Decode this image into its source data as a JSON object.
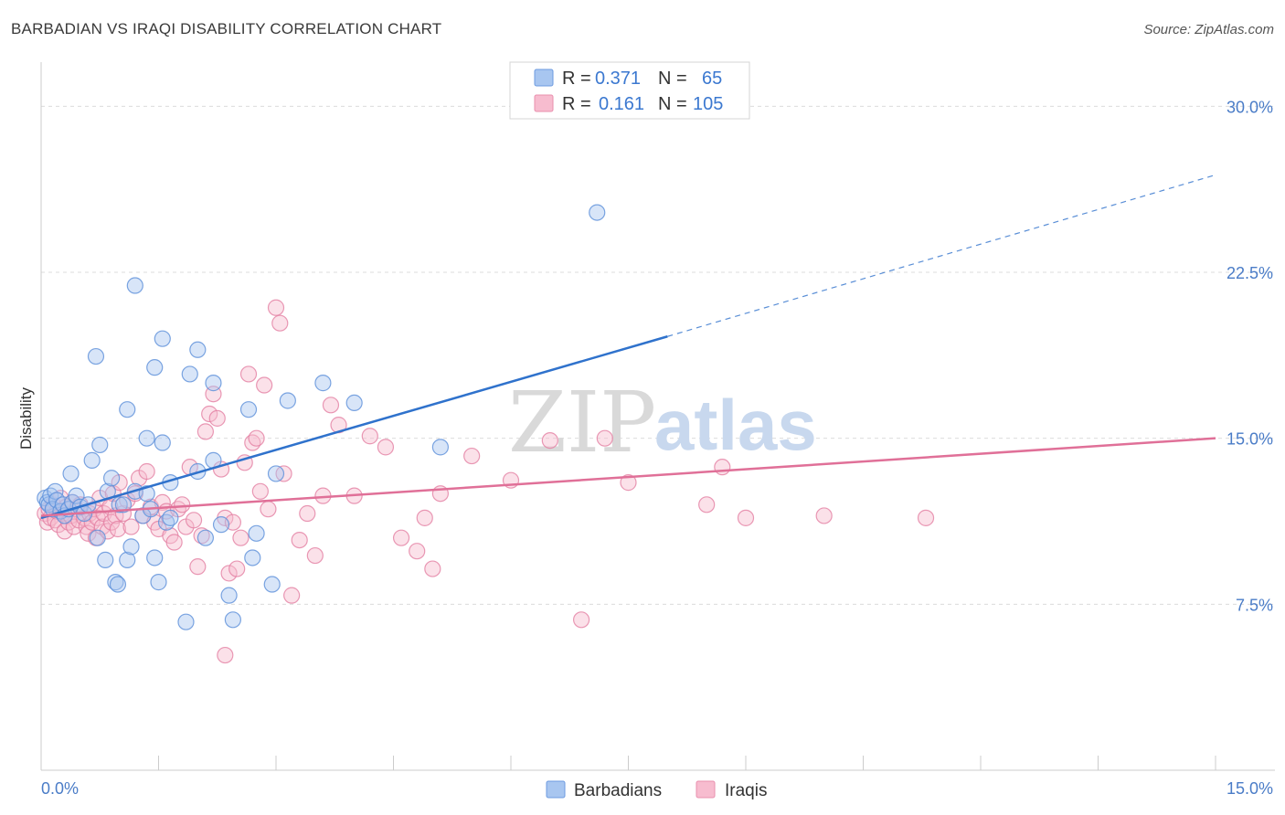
{
  "title": "BARBADIAN VS IRAQI DISABILITY CORRELATION CHART",
  "source": "Source: ZipAtlas.com",
  "watermark": {
    "zip": "ZIP",
    "atlas": "atlas"
  },
  "legend_top": [
    {
      "r_label": "R =",
      "r_value": "0.371",
      "n_label": "N =",
      "n_value": "65",
      "color": "#a8c6f0",
      "stroke": "#6d9be0"
    },
    {
      "r_label": "R =",
      "r_value": "0.161",
      "n_label": "N =",
      "n_value": "105",
      "color": "#f7bccf",
      "stroke": "#e98fae"
    }
  ],
  "chart_data": {
    "type": "scatter",
    "xlabel": "",
    "ylabel": "Disability",
    "xlim": [
      0,
      15
    ],
    "ylim": [
      0,
      31.5
    ],
    "x_tick_labels": [
      "0.0%",
      "15.0%"
    ],
    "y_ticks": [
      7.5,
      15.0,
      22.5,
      30.0
    ],
    "y_tick_labels": [
      "7.5%",
      "15.0%",
      "22.5%",
      "30.0%"
    ],
    "grid": true,
    "legend_position": "bottom-center",
    "series": [
      {
        "name": "Barbadians",
        "color": "#a8c6f0",
        "stroke": "#5b8fd9",
        "trend": {
          "x0": 0,
          "y0": 11.4,
          "x1": 8.0,
          "y1": 19.6,
          "x_dash_end": 15.0,
          "y_dash_end": 26.9,
          "color": "#2f72cc"
        },
        "points": [
          [
            0.05,
            12.3
          ],
          [
            0.08,
            12.1
          ],
          [
            0.1,
            12.0
          ],
          [
            0.12,
            12.4
          ],
          [
            0.15,
            11.8
          ],
          [
            0.18,
            12.6
          ],
          [
            0.2,
            12.2
          ],
          [
            0.25,
            11.7
          ],
          [
            0.28,
            12.0
          ],
          [
            0.3,
            11.5
          ],
          [
            0.35,
            11.8
          ],
          [
            0.4,
            12.1
          ],
          [
            0.45,
            12.4
          ],
          [
            0.5,
            11.9
          ],
          [
            0.55,
            11.6
          ],
          [
            0.6,
            12.0
          ],
          [
            0.38,
            13.4
          ],
          [
            0.65,
            14.0
          ],
          [
            0.75,
            14.7
          ],
          [
            0.85,
            12.6
          ],
          [
            0.9,
            13.2
          ],
          [
            1.0,
            12.0
          ],
          [
            1.05,
            12.0
          ],
          [
            0.72,
            10.5
          ],
          [
            0.82,
            9.5
          ],
          [
            0.95,
            8.5
          ],
          [
            0.98,
            8.4
          ],
          [
            1.1,
            9.5
          ],
          [
            1.15,
            10.1
          ],
          [
            1.3,
            11.5
          ],
          [
            1.2,
            12.6
          ],
          [
            1.35,
            12.5
          ],
          [
            1.4,
            11.8
          ],
          [
            1.45,
            9.6
          ],
          [
            1.5,
            8.5
          ],
          [
            1.55,
            14.8
          ],
          [
            1.6,
            11.2
          ],
          [
            1.65,
            11.4
          ],
          [
            1.35,
            15.0
          ],
          [
            1.1,
            16.3
          ],
          [
            1.45,
            18.2
          ],
          [
            1.55,
            19.5
          ],
          [
            0.7,
            18.7
          ],
          [
            1.2,
            21.9
          ],
          [
            1.9,
            17.9
          ],
          [
            2.0,
            19.0
          ],
          [
            2.2,
            17.5
          ],
          [
            2.1,
            10.5
          ],
          [
            2.3,
            11.1
          ],
          [
            2.2,
            14.0
          ],
          [
            2.4,
            7.9
          ],
          [
            2.45,
            6.8
          ],
          [
            1.85,
            6.7
          ],
          [
            2.65,
            16.3
          ],
          [
            2.7,
            9.6
          ],
          [
            2.75,
            10.7
          ],
          [
            2.95,
            8.4
          ],
          [
            3.0,
            13.4
          ],
          [
            3.15,
            16.7
          ],
          [
            3.6,
            17.5
          ],
          [
            4.0,
            16.6
          ],
          [
            5.1,
            14.6
          ],
          [
            7.1,
            25.2
          ],
          [
            1.65,
            13.0
          ],
          [
            2.0,
            13.5
          ]
        ]
      },
      {
        "name": "Iraqis",
        "color": "#f7bccf",
        "stroke": "#e37fa2",
        "trend": {
          "x0": 0,
          "y0": 11.5,
          "x1": 15.0,
          "y1": 15.0,
          "color": "#e07098"
        },
        "points": [
          [
            0.05,
            11.6
          ],
          [
            0.08,
            11.2
          ],
          [
            0.1,
            11.8
          ],
          [
            0.12,
            11.4
          ],
          [
            0.15,
            12.0
          ],
          [
            0.18,
            11.3
          ],
          [
            0.2,
            11.7
          ],
          [
            0.22,
            11.1
          ],
          [
            0.25,
            12.3
          ],
          [
            0.28,
            11.6
          ],
          [
            0.3,
            10.8
          ],
          [
            0.32,
            11.9
          ],
          [
            0.35,
            11.2
          ],
          [
            0.38,
            11.5
          ],
          [
            0.4,
            12.1
          ],
          [
            0.42,
            11.0
          ],
          [
            0.45,
            11.8
          ],
          [
            0.48,
            11.3
          ],
          [
            0.5,
            12.0
          ],
          [
            0.55,
            11.4
          ],
          [
            0.58,
            11.0
          ],
          [
            0.6,
            10.7
          ],
          [
            0.62,
            11.6
          ],
          [
            0.65,
            11.2
          ],
          [
            0.68,
            11.8
          ],
          [
            0.7,
            10.5
          ],
          [
            0.72,
            11.4
          ],
          [
            0.75,
            12.3
          ],
          [
            0.78,
            11.0
          ],
          [
            0.8,
            11.6
          ],
          [
            0.85,
            10.8
          ],
          [
            0.88,
            11.9
          ],
          [
            0.9,
            11.2
          ],
          [
            0.92,
            12.5
          ],
          [
            0.95,
            11.5
          ],
          [
            0.98,
            10.9
          ],
          [
            1.0,
            13.0
          ],
          [
            1.05,
            11.6
          ],
          [
            1.1,
            12.2
          ],
          [
            1.15,
            11.0
          ],
          [
            1.2,
            12.5
          ],
          [
            1.25,
            13.2
          ],
          [
            1.3,
            11.5
          ],
          [
            1.35,
            13.5
          ],
          [
            1.4,
            11.9
          ],
          [
            1.45,
            11.2
          ],
          [
            1.5,
            10.9
          ],
          [
            1.55,
            12.1
          ],
          [
            1.6,
            11.7
          ],
          [
            1.65,
            10.6
          ],
          [
            1.7,
            10.3
          ],
          [
            1.75,
            11.8
          ],
          [
            1.8,
            12.0
          ],
          [
            1.85,
            11.0
          ],
          [
            1.9,
            13.7
          ],
          [
            1.95,
            11.3
          ],
          [
            2.0,
            9.2
          ],
          [
            2.05,
            10.6
          ],
          [
            2.1,
            15.3
          ],
          [
            2.15,
            16.1
          ],
          [
            2.2,
            17.0
          ],
          [
            2.25,
            15.9
          ],
          [
            2.3,
            13.6
          ],
          [
            2.35,
            11.4
          ],
          [
            2.4,
            8.9
          ],
          [
            2.45,
            11.2
          ],
          [
            2.5,
            9.1
          ],
          [
            2.55,
            10.5
          ],
          [
            2.6,
            13.9
          ],
          [
            2.65,
            17.9
          ],
          [
            2.7,
            14.8
          ],
          [
            2.75,
            15.0
          ],
          [
            2.8,
            12.6
          ],
          [
            2.85,
            17.4
          ],
          [
            2.9,
            11.8
          ],
          [
            3.0,
            20.9
          ],
          [
            3.05,
            20.2
          ],
          [
            3.1,
            13.4
          ],
          [
            3.2,
            7.9
          ],
          [
            3.3,
            10.4
          ],
          [
            3.4,
            11.6
          ],
          [
            3.5,
            9.7
          ],
          [
            3.6,
            12.4
          ],
          [
            3.7,
            16.5
          ],
          [
            3.8,
            15.6
          ],
          [
            4.0,
            12.4
          ],
          [
            4.2,
            15.1
          ],
          [
            4.4,
            14.6
          ],
          [
            4.6,
            10.5
          ],
          [
            4.8,
            9.9
          ],
          [
            4.9,
            11.4
          ],
          [
            5.0,
            9.1
          ],
          [
            5.1,
            12.5
          ],
          [
            5.5,
            14.2
          ],
          [
            6.0,
            13.1
          ],
          [
            6.5,
            14.9
          ],
          [
            6.9,
            6.8
          ],
          [
            7.2,
            15.0
          ],
          [
            7.5,
            13.0
          ],
          [
            8.5,
            12.0
          ],
          [
            8.7,
            13.7
          ],
          [
            9.0,
            11.4
          ],
          [
            10.0,
            11.5
          ],
          [
            11.3,
            11.4
          ],
          [
            2.35,
            5.2
          ]
        ]
      }
    ]
  }
}
